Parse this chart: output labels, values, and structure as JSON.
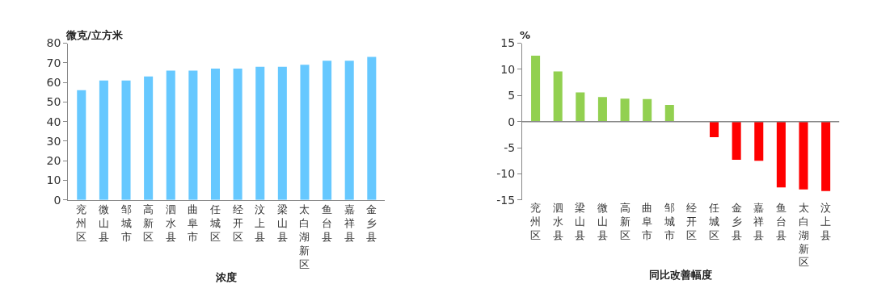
{
  "chart_data": [
    {
      "type": "bar",
      "xlabel": "浓度",
      "ylabel": "微克/立方米",
      "categories": [
        "兖州区",
        "微山县",
        "邹城市",
        "高新区",
        "泗水县",
        "曲阜市",
        "任城区",
        "经开区",
        "汶上县",
        "梁山县",
        "太白湖新区",
        "鱼台县",
        "嘉祥县",
        "金乡县"
      ],
      "values": [
        56,
        61,
        61,
        63,
        66,
        66,
        67,
        67,
        68,
        68,
        69,
        71,
        71,
        73
      ],
      "color": "#66c8ff",
      "ylim": [
        0,
        80
      ],
      "yticks": [
        0,
        10,
        20,
        30,
        40,
        50,
        60,
        70,
        80
      ]
    },
    {
      "type": "bar",
      "xlabel": "同比改善幅度",
      "ylabel": "%",
      "categories": [
        "兖州区",
        "泗水县",
        "梁山县",
        "微山县",
        "高新区",
        "曲阜市",
        "邹城市",
        "经开区",
        "任城区",
        "金乡县",
        "嘉祥县",
        "鱼台县",
        "太白湖新区",
        "汶上县"
      ],
      "values": [
        12.6,
        9.6,
        5.6,
        4.7,
        4.4,
        4.3,
        3.2,
        0,
        -3,
        -7.3,
        -7.5,
        -12.6,
        -13,
        -13.3
      ],
      "colors": [
        "#92d050",
        "#92d050",
        "#92d050",
        "#92d050",
        "#92d050",
        "#92d050",
        "#92d050",
        "#92d050",
        "#ff0000",
        "#ff0000",
        "#ff0000",
        "#ff0000",
        "#ff0000",
        "#ff0000"
      ],
      "ylim": [
        -15,
        15
      ],
      "yticks": [
        -15,
        -10,
        -5,
        0,
        5,
        10,
        15
      ]
    }
  ]
}
